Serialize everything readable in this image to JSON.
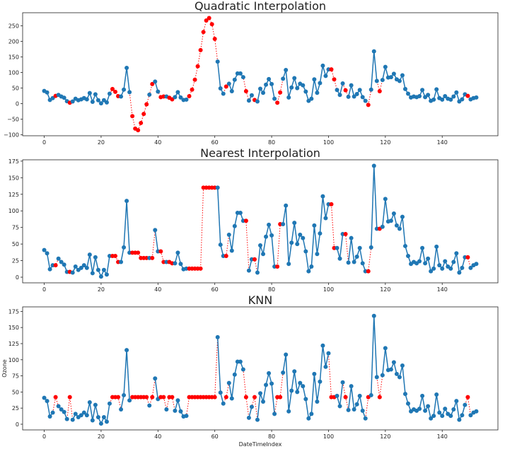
{
  "original": [
    41,
    36,
    12,
    18,
    null,
    28,
    23,
    19,
    8,
    null,
    7,
    16,
    11,
    14,
    18,
    14,
    34,
    6,
    30,
    11,
    1,
    11,
    4,
    32,
    null,
    null,
    null,
    23,
    45,
    115,
    37,
    null,
    null,
    null,
    null,
    null,
    null,
    29,
    null,
    71,
    39,
    null,
    null,
    23,
    null,
    null,
    21,
    37,
    20,
    12,
    13,
    null,
    null,
    null,
    null,
    null,
    null,
    null,
    null,
    null,
    null,
    135,
    49,
    32,
    null,
    64,
    40,
    77,
    97,
    97,
    85,
    null,
    10,
    27,
    null,
    7,
    48,
    35,
    61,
    79,
    63,
    16,
    null,
    null,
    80,
    108,
    20,
    52,
    82,
    50,
    64,
    59,
    39,
    9,
    16,
    78,
    35,
    66,
    122,
    89,
    110,
    null,
    null,
    44,
    28,
    65,
    null,
    22,
    59,
    23,
    31,
    44,
    21,
    9,
    null,
    45,
    168,
    73,
    null,
    76,
    118,
    84,
    85,
    96,
    78,
    73,
    91,
    47,
    32,
    20,
    23,
    21,
    24,
    44,
    21,
    28,
    9,
    13,
    46,
    18,
    13,
    24,
    16,
    13,
    23,
    36,
    7,
    14,
    30,
    null,
    14,
    18,
    20
  ],
  "colors": {
    "observed": "#1f77b4",
    "imputed": "#ff0000"
  },
  "chart_data": [
    {
      "type": "line",
      "title": "Quadratic Interpolation",
      "xlabel": "",
      "ylabel": "",
      "xlim": [
        -7.6,
        159.6
      ],
      "ylim": [
        -103,
        292
      ],
      "xticks": [
        0,
        20,
        40,
        60,
        80,
        100,
        120,
        140
      ],
      "yticks": [
        -100,
        -50,
        0,
        50,
        100,
        150,
        200,
        250
      ],
      "imputed": {
        "4": 25,
        "9": 3,
        "24": 47,
        "25": 38,
        "26": 24,
        "31": -40,
        "32": -80,
        "33": -85,
        "34": -62,
        "35": -33,
        "36": -2,
        "38": 63,
        "41": 21,
        "42": 23,
        "44": 19,
        "45": 14,
        "51": 24,
        "52": 45,
        "53": 77,
        "54": 120,
        "55": 172,
        "56": 230,
        "57": 267,
        "58": 275,
        "59": 255,
        "60": 208,
        "64": 55,
        "71": 40,
        "74": 12,
        "82": 3,
        "83": 36,
        "101": 110,
        "102": 78,
        "106": 43,
        "114": -4,
        "118": 40,
        "149": 25
      }
    },
    {
      "type": "line",
      "title": "Nearest Interpolation",
      "xlabel": "",
      "ylabel": "",
      "xlim": [
        -7.6,
        159.6
      ],
      "ylim": [
        -8.5,
        177
      ],
      "xticks": [
        0,
        20,
        40,
        60,
        80,
        100,
        120,
        140
      ],
      "yticks": [
        0,
        25,
        50,
        75,
        100,
        125,
        150,
        175
      ],
      "imputed": {
        "4": 18,
        "9": 8,
        "24": 32,
        "25": 32,
        "26": 23,
        "31": 37,
        "32": 37,
        "33": 37,
        "34": 29,
        "35": 29,
        "36": 29,
        "38": 29,
        "41": 39,
        "42": 23,
        "44": 23,
        "45": 21,
        "51": 13,
        "52": 13,
        "53": 13,
        "54": 13,
        "55": 13,
        "56": 135,
        "57": 135,
        "58": 135,
        "59": 135,
        "60": 135,
        "64": 32,
        "71": 85,
        "74": 27,
        "82": 16,
        "83": 80,
        "101": 110,
        "102": 44,
        "106": 65,
        "114": 9,
        "118": 73,
        "149": 30
      }
    },
    {
      "type": "line",
      "title": "KNN",
      "xlabel": "DateTimeIndex",
      "ylabel": "Ozone",
      "xlim": [
        -7.6,
        159.6
      ],
      "ylim": [
        -8.8,
        182
      ],
      "xticks": [
        0,
        20,
        40,
        60,
        80,
        100,
        120,
        140
      ],
      "yticks": [
        0,
        25,
        50,
        75,
        100,
        125,
        150,
        175
      ],
      "imputed": {
        "4": 42,
        "9": 42,
        "24": 42,
        "25": 42,
        "26": 42,
        "31": 42,
        "32": 42,
        "33": 42,
        "34": 42,
        "35": 42,
        "36": 42,
        "38": 42,
        "41": 42,
        "42": 42,
        "44": 42,
        "45": 42,
        "51": 42,
        "52": 42,
        "53": 42,
        "54": 42,
        "55": 42,
        "56": 42,
        "57": 42,
        "58": 42,
        "59": 42,
        "60": 42,
        "64": 42,
        "71": 42,
        "74": 42,
        "82": 42,
        "83": 42,
        "101": 42,
        "102": 42,
        "106": 42,
        "114": 42,
        "118": 42,
        "149": 42
      }
    }
  ]
}
